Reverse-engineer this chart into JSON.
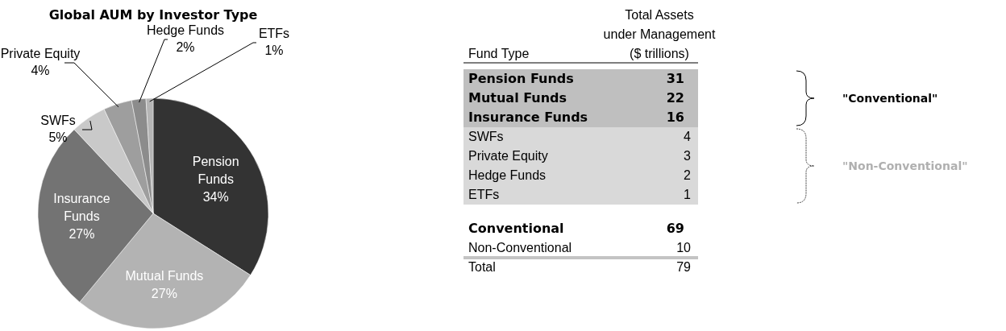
{
  "chart_data": [
    {
      "type": "pie",
      "title": "Global AUM by Investor Type",
      "categories": [
        "Pension Funds",
        "Mutual Funds",
        "Insurance Funds",
        "SWFs",
        "Private Equity",
        "Hedge Funds",
        "ETFs"
      ],
      "values": [
        34,
        27,
        27,
        5,
        4,
        2,
        1
      ],
      "value_labels": [
        "34%",
        "27%",
        "27%",
        "5%",
        "4%",
        "2%",
        "1%"
      ],
      "colors": [
        "#333333",
        "#b3b3b3",
        "#737373",
        "#c9c9c9",
        "#9e9e9e",
        "#8c8c8c",
        "#b5b5b5"
      ]
    },
    {
      "type": "other",
      "categories": [
        "Pension Funds",
        "Mutual Funds",
        "Insurance Funds",
        "SWFs",
        "Private Equity",
        "Hedge Funds",
        "ETFs",
        "Conventional",
        "Non-Conventional",
        "Total"
      ],
      "values": [
        31,
        22,
        16,
        4,
        3,
        2,
        1,
        69,
        10,
        79
      ],
      "data_labels": true,
      "xlabel": "Fund Type",
      "ylabel": "Total Assets under Management ($ trillions)",
      "colors": [
        "#bfbfbf",
        "#bfbfbf",
        "#bfbfbf",
        "#d9d9d9",
        "#d9d9d9",
        "#d9d9d9",
        "#d9d9d9",
        null,
        null,
        null
      ],
      "annotations": [
        "\"Conventional\"",
        "\"Non-Conventional\""
      ]
    }
  ]
}
